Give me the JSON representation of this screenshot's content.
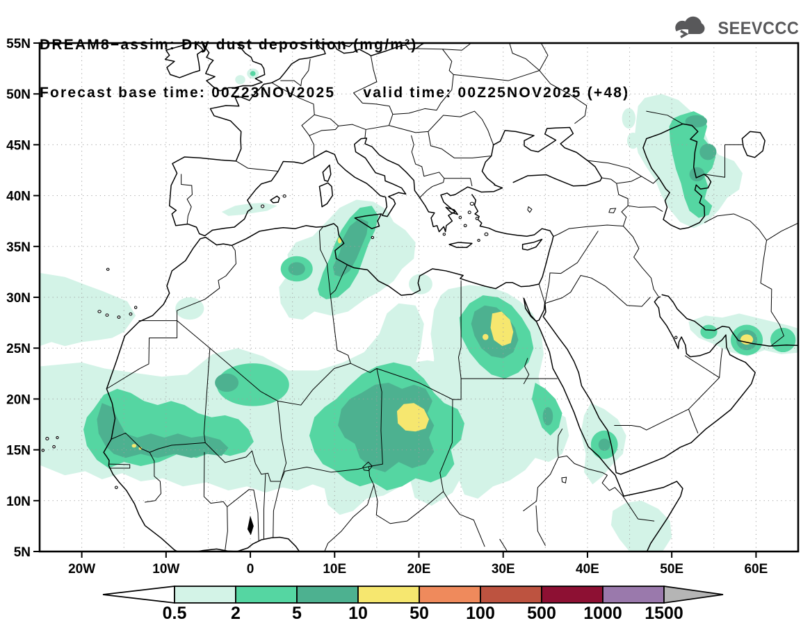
{
  "header": {
    "line1": "DREAM8−assim: Dry dust deposition (mg/m²)",
    "line2": "Forecast base time: 00Z23NOV2025     valid time: 00Z25NOV2025 (+48)"
  },
  "logo": {
    "text": "SEEVCCC",
    "color": "#58585a"
  },
  "x_axis": {
    "ticks": [
      {
        "label": "20W",
        "lon": -20
      },
      {
        "label": "10W",
        "lon": -10
      },
      {
        "label": "0",
        "lon": 0
      },
      {
        "label": "10E",
        "lon": 10
      },
      {
        "label": "20E",
        "lon": 20
      },
      {
        "label": "30E",
        "lon": 30
      },
      {
        "label": "40E",
        "lon": 40
      },
      {
        "label": "50E",
        "lon": 50
      },
      {
        "label": "60E",
        "lon": 60
      }
    ]
  },
  "y_axis": {
    "ticks": [
      {
        "label": "55N",
        "lat": 55
      },
      {
        "label": "50N",
        "lat": 50
      },
      {
        "label": "45N",
        "lat": 45
      },
      {
        "label": "40N",
        "lat": 40
      },
      {
        "label": "35N",
        "lat": 35
      },
      {
        "label": "30N",
        "lat": 30
      },
      {
        "label": "25N",
        "lat": 25
      },
      {
        "label": "20N",
        "lat": 20
      },
      {
        "label": "15N",
        "lat": 15
      },
      {
        "label": "10N",
        "lat": 10
      },
      {
        "label": "5N",
        "lat": 5
      }
    ]
  },
  "map": {
    "extent": {
      "lon_min": -25,
      "lon_max": 65,
      "lat_min": 5,
      "lat_max": 55
    },
    "grid_step_deg": 5,
    "level_colors": {
      "0.5": "#d3f3e7",
      "2": "#55d6a2",
      "5": "#4db190",
      "10": "#f6e76f"
    }
  },
  "colorbar": {
    "unit": "mg/m²",
    "tick_labels": [
      "0.5",
      "2",
      "5",
      "10",
      "50",
      "100",
      "500",
      "1000",
      "1500"
    ],
    "segment_colors": [
      "#d3f3e7",
      "#55d6a2",
      "#4db190",
      "#f6e76f",
      "#ef8a5c",
      "#bd5340",
      "#8d1033",
      "#9a79ac"
    ],
    "left_cap_color": "#ffffff",
    "right_cap_color": "#b5b5b5"
  }
}
